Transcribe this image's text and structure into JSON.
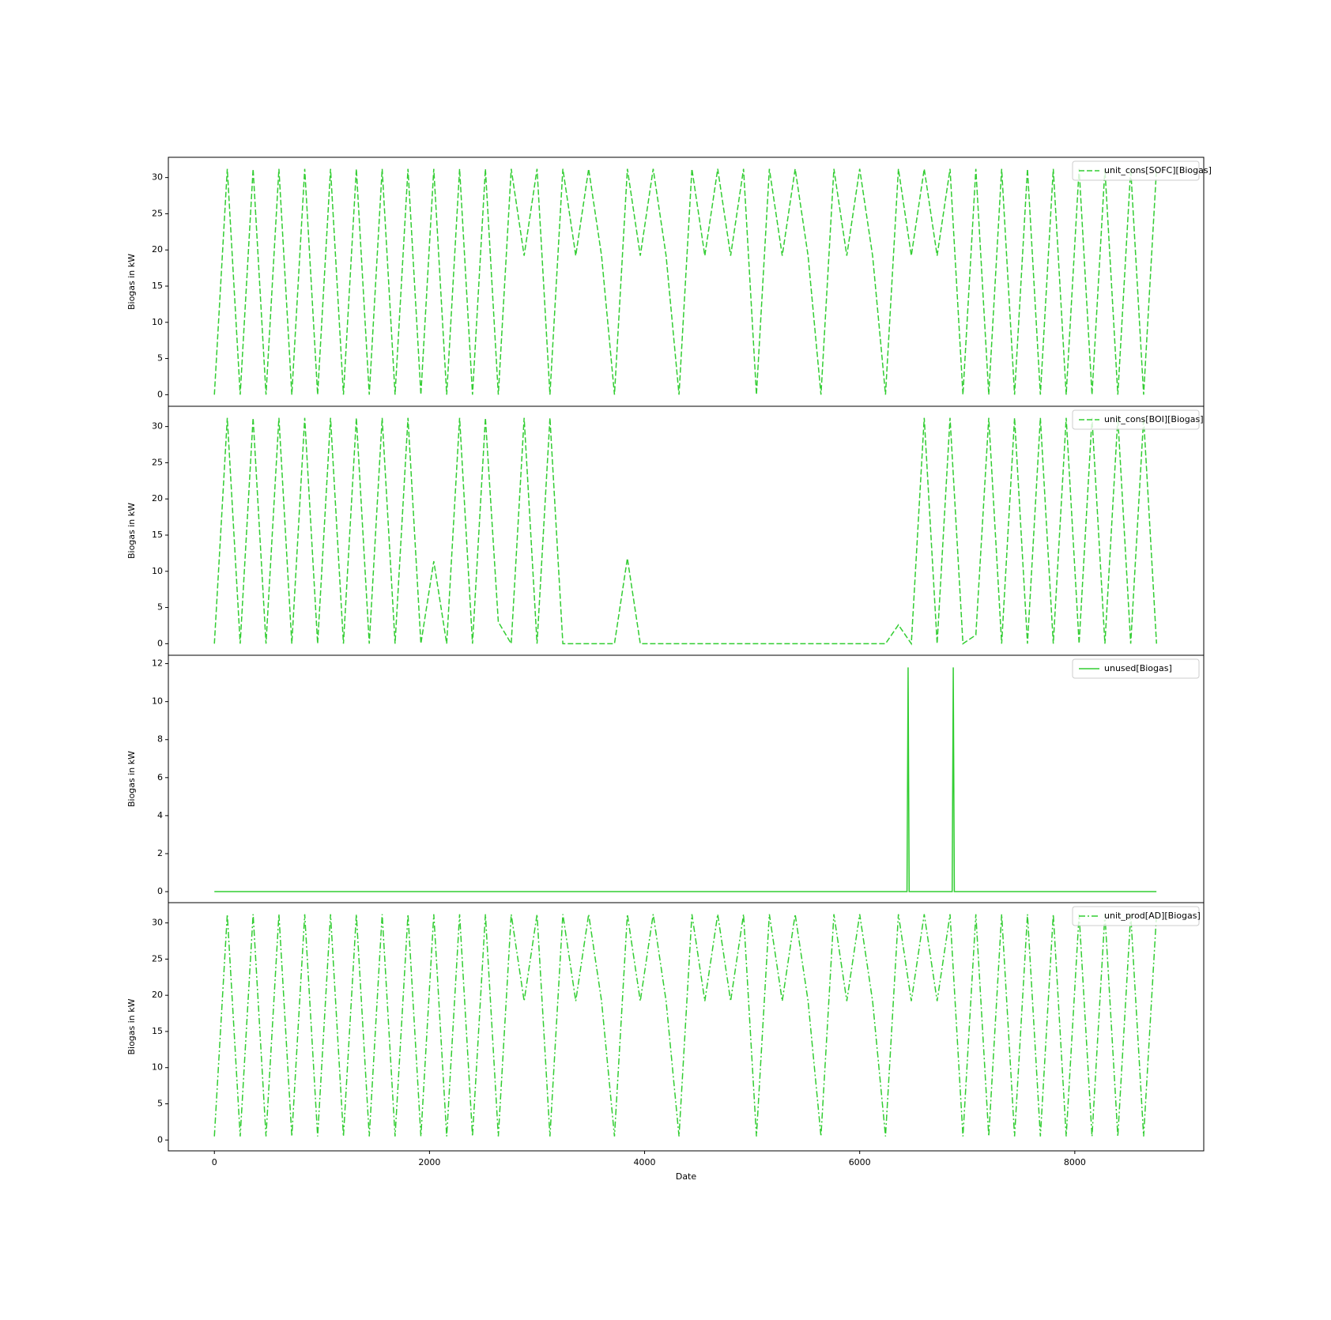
{
  "chart_data": [
    {
      "type": "line",
      "ylabel": "Biogas in kW",
      "legend": "upper right",
      "grid": false,
      "xlim": [
        -428,
        9199
      ],
      "ylim": [
        -1.6,
        32.8
      ],
      "yticks": [
        0,
        5,
        10,
        15,
        20,
        25,
        30
      ],
      "x": [
        0,
        120,
        240,
        360,
        480,
        600,
        720,
        840,
        960,
        1080,
        1200,
        1320,
        1440,
        1560,
        1680,
        1800,
        1920,
        2040,
        2160,
        2280,
        2400,
        2520,
        2640,
        2760,
        2880,
        3000,
        3120,
        3240,
        3360,
        3480,
        3600,
        3720,
        3840,
        3960,
        4080,
        4200,
        4320,
        4440,
        4560,
        4680,
        4800,
        4920,
        5040,
        5160,
        5280,
        5400,
        5520,
        5640,
        5760,
        5880,
        6000,
        6120,
        6240,
        6360,
        6480,
        6600,
        6720,
        6840,
        6960,
        7080,
        7200,
        7320,
        7440,
        7560,
        7680,
        7800,
        7920,
        8040,
        8160,
        8280,
        8400,
        8520,
        8640,
        8760
      ],
      "series": [
        {
          "name": "unit_cons[SOFC][Biogas]",
          "color": "#32cd32",
          "linestyle": "dashed",
          "values": [
            0,
            31.2,
            0,
            31.2,
            0,
            31.2,
            0,
            31.2,
            0,
            31.2,
            0,
            31.2,
            0,
            31.2,
            0,
            31.2,
            0,
            31.2,
            0,
            31.2,
            0,
            31.2,
            0,
            31.2,
            19.2,
            31.2,
            0,
            31.2,
            19.2,
            31.2,
            19.2,
            0,
            31.2,
            19.2,
            31.2,
            19.2,
            0,
            31.2,
            19.2,
            31.2,
            19.2,
            31.2,
            0,
            31.2,
            19.2,
            31.2,
            19.2,
            0,
            31.2,
            19.2,
            31.2,
            19.2,
            0,
            31.2,
            19.2,
            31.2,
            19.2,
            31.2,
            0,
            31.2,
            0,
            31.2,
            0,
            31.2,
            0,
            31.2,
            0,
            31.2,
            0,
            31.2,
            0,
            31.2,
            0,
            31.2
          ]
        }
      ]
    },
    {
      "type": "line",
      "ylabel": "Biogas in kW",
      "legend": "upper right",
      "grid": false,
      "xlim": [
        -428,
        9199
      ],
      "ylim": [
        -1.6,
        32.8
      ],
      "yticks": [
        0,
        5,
        10,
        15,
        20,
        25,
        30
      ],
      "x": [
        0,
        120,
        240,
        360,
        480,
        600,
        720,
        840,
        960,
        1080,
        1200,
        1320,
        1440,
        1560,
        1680,
        1800,
        1920,
        2040,
        2160,
        2280,
        2400,
        2520,
        2640,
        2760,
        2880,
        3000,
        3120,
        3240,
        3360,
        3480,
        3600,
        3720,
        3840,
        3960,
        4080,
        4200,
        4320,
        4440,
        4560,
        4680,
        4800,
        4920,
        5040,
        5160,
        5280,
        5400,
        5520,
        5640,
        5760,
        5880,
        6000,
        6120,
        6240,
        6360,
        6480,
        6600,
        6720,
        6840,
        6960,
        7080,
        7200,
        7320,
        7440,
        7560,
        7680,
        7800,
        7920,
        8040,
        8160,
        8280,
        8400,
        8520,
        8640,
        8760
      ],
      "series": [
        {
          "name": "unit_cons[BOI][Biogas]",
          "color": "#32cd32",
          "linestyle": "dashed",
          "values": [
            0,
            31.2,
            0,
            31.2,
            0,
            31.2,
            0,
            31.2,
            0,
            31.2,
            0,
            31.2,
            0,
            31.2,
            0,
            31.2,
            0,
            11.4,
            0,
            31.2,
            0,
            31.2,
            3,
            0,
            31.2,
            0,
            31.2,
            0,
            0,
            0,
            0,
            0,
            11.8,
            0,
            0,
            0,
            0,
            0,
            0,
            0,
            0,
            0,
            0,
            0,
            0,
            0,
            0,
            0,
            0,
            0,
            0,
            0,
            0,
            2.6,
            0,
            31.2,
            0,
            31.2,
            0,
            1.2,
            31.2,
            0,
            31.2,
            0,
            31.2,
            0,
            31.2,
            0,
            31.2,
            0,
            31.2,
            0,
            31.2,
            0
          ]
        }
      ]
    },
    {
      "type": "line",
      "ylabel": "Biogas in kW",
      "legend": "upper right",
      "grid": false,
      "xlim": [
        -428,
        9199
      ],
      "ylim": [
        -0.58,
        12.44
      ],
      "yticks": [
        0,
        2,
        4,
        6,
        8,
        10,
        12
      ],
      "x": [
        0,
        6440,
        6450,
        6460,
        6860,
        6870,
        6880,
        8759
      ],
      "series": [
        {
          "name": "unused[Biogas]",
          "color": "#32cd32",
          "linestyle": "solid",
          "values": [
            0,
            0,
            11.8,
            0,
            0,
            11.8,
            0,
            0
          ]
        }
      ]
    },
    {
      "type": "line",
      "ylabel": "Biogas in kW",
      "xlabel": "Date",
      "legend": "upper right",
      "grid": false,
      "xlim": [
        -428,
        9199
      ],
      "ylim": [
        -1.5,
        32.8
      ],
      "yticks": [
        0,
        5,
        10,
        15,
        20,
        25,
        30
      ],
      "xticks": [
        0,
        2000,
        4000,
        6000,
        8000
      ],
      "x": [
        0,
        120,
        240,
        360,
        480,
        600,
        720,
        840,
        960,
        1080,
        1200,
        1320,
        1440,
        1560,
        1680,
        1800,
        1920,
        2040,
        2160,
        2280,
        2400,
        2520,
        2640,
        2760,
        2880,
        3000,
        3120,
        3240,
        3360,
        3480,
        3600,
        3720,
        3840,
        3960,
        4080,
        4200,
        4320,
        4440,
        4560,
        4680,
        4800,
        4920,
        5040,
        5160,
        5280,
        5400,
        5520,
        5640,
        5760,
        5880,
        6000,
        6120,
        6240,
        6360,
        6480,
        6600,
        6720,
        6840,
        6960,
        7080,
        7200,
        7320,
        7440,
        7560,
        7680,
        7800,
        7920,
        8040,
        8160,
        8280,
        8400,
        8520,
        8640,
        8760
      ],
      "series": [
        {
          "name": "unit_prod[AD][Biogas]",
          "color": "#32cd32",
          "linestyle": "dashdot",
          "values": [
            0.5,
            31.2,
            0.5,
            31.2,
            0.5,
            31.2,
            0.5,
            31.2,
            0.5,
            31.2,
            0.5,
            31.2,
            0.5,
            31.2,
            0.5,
            31.2,
            0.5,
            31.2,
            0.5,
            31.2,
            0.5,
            31.2,
            0.5,
            31.2,
            19.2,
            31.2,
            0.5,
            31.2,
            19.2,
            31.2,
            19.2,
            0.5,
            31.2,
            19.2,
            31.2,
            19.2,
            0.5,
            31.2,
            19.2,
            31.2,
            19.2,
            31.2,
            0.5,
            31.2,
            19.2,
            31.2,
            19.2,
            0.5,
            31.2,
            19.2,
            31.2,
            19.2,
            0.5,
            31.2,
            19.2,
            31.2,
            19.2,
            31.2,
            0.5,
            31.2,
            0.5,
            31.2,
            0.5,
            31.2,
            0.5,
            31.2,
            0.5,
            31.2,
            0.5,
            31.2,
            0.5,
            31.2,
            0.5,
            31.2
          ]
        }
      ]
    }
  ]
}
